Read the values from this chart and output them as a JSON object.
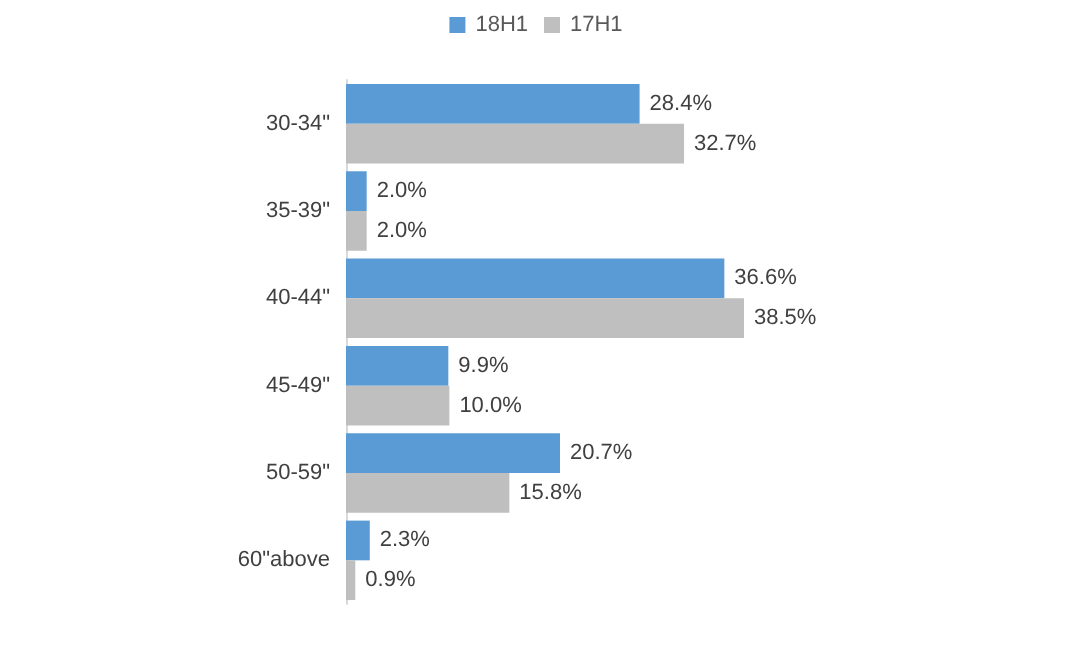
{
  "chart_data": {
    "type": "bar",
    "orientation": "horizontal",
    "categories": [
      "30-34\"",
      "35-39\"",
      "40-44\"",
      "45-49\"",
      "50-59\"",
      "60\"above"
    ],
    "series": [
      {
        "name": "18H1",
        "color": "#5b9bd5",
        "values": [
          28.4,
          2.0,
          36.6,
          9.9,
          20.7,
          2.3
        ],
        "value_labels": [
          "28.4%",
          "2.0%",
          "36.6%",
          "9.9%",
          "20.7%",
          "2.3%"
        ]
      },
      {
        "name": "17H1",
        "color": "#bfbfbf",
        "values": [
          32.7,
          2.0,
          38.5,
          10.0,
          15.8,
          0.9
        ],
        "value_labels": [
          "32.7%",
          "2.0%",
          "38.5%",
          "10.0%",
          "15.8%",
          "0.9%"
        ]
      }
    ],
    "legend": "top"
  }
}
